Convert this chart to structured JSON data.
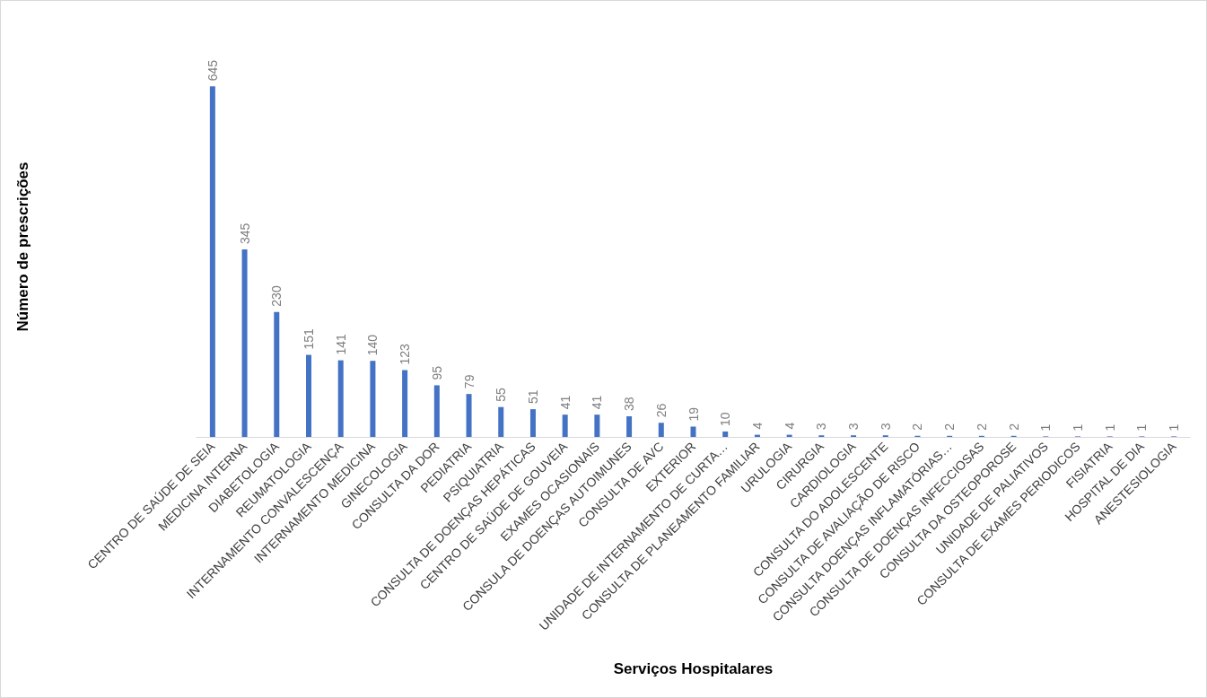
{
  "chart_data": {
    "type": "bar",
    "xlabel": "Serviços Hospitalares",
    "ylabel": "Número de prescrições",
    "categories": [
      "CENTRO DE SAÚDE DE SEIA",
      "MEDICINA INTERNA",
      "DIABETOLOGIA",
      "REUMATOLOGIA",
      "INTERNAMENTO CONVALESCENÇA",
      "INTERNAMENTO MEDICINA",
      "GINECOLOGIA",
      "CONSULTA DA DOR",
      "PEDIATRIA",
      "PSIQUIATRIA",
      "CONSULTA DE DOENÇAS HEPÁTICAS",
      "CENTRO DE SAÚDE DE GOUVEIA",
      "EXAMES OCASIONAIS",
      "CONSULA DE DOENÇAS AUTOIMUNES",
      "CONSULTA DE AVC",
      "EXTERIOR",
      "UNIDADE DE INTERNAMENTO DE CURTA…",
      "CONSULTA DE PLANEAMENTO FAMILIAR",
      "URULOGIA",
      "CIRURGIA",
      "CARDIOLOGIA",
      "CONSULTA DO ADOLESCENTE",
      "CONSULTA DE AVALIAÇÃO DE RISCO",
      "CONSULTA DOENÇAS INFLAMATÓRIAS…",
      "CONSULTA DE DOENÇAS INFECCIOSAS",
      "CONSULTA DA OSTEOPOROSE",
      "UNIDADE DE PALIATIVOS",
      "CONSULTA DE EXAMES PERIODICOS",
      "FISIATRIA",
      "HOSPITAL DE DIA",
      "ANESTESIOLOGIA"
    ],
    "values": [
      645,
      345,
      230,
      151,
      141,
      140,
      123,
      95,
      79,
      55,
      51,
      41,
      41,
      38,
      26,
      19,
      10,
      4,
      4,
      3,
      3,
      3,
      2,
      2,
      2,
      2,
      1,
      1,
      1,
      1,
      1
    ],
    "color": "#4472c4",
    "data_labels": true,
    "grid": false
  }
}
